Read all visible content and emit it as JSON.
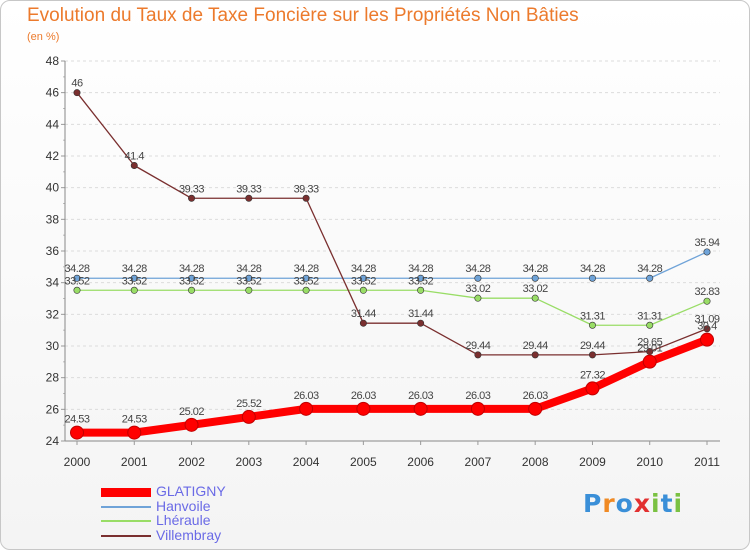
{
  "chart_data": {
    "type": "line",
    "title": "Evolution du Taux de Taxe Foncière sur les Propriétés Non Bâties",
    "ylabel": "(en %)",
    "xlabel": "",
    "categories": [
      "2000",
      "2001",
      "2002",
      "2003",
      "2004",
      "2005",
      "2006",
      "2007",
      "2008",
      "2009",
      "2010",
      "2011"
    ],
    "ylim": [
      24,
      48
    ],
    "yticks": [
      24,
      26,
      28,
      30,
      32,
      34,
      36,
      38,
      40,
      42,
      44,
      46,
      48
    ],
    "grid": "horizontal-dashed",
    "legend_position": "bottom-left",
    "series": [
      {
        "name": "GLATIGNY",
        "color": "#ff0000",
        "values": [
          24.53,
          24.53,
          25.02,
          25.52,
          26.03,
          26.03,
          26.03,
          26.03,
          26.03,
          27.32,
          29.01,
          30.4
        ],
        "labels": [
          "24.53",
          "24.53",
          "25.02",
          "25.52",
          "26.03",
          "26.03",
          "26.03",
          "26.03",
          "26.03",
          "27.32",
          "29.01",
          "30.4"
        ]
      },
      {
        "name": "Hanvoile",
        "color": "#6fa3d8",
        "values": [
          34.28,
          34.28,
          34.28,
          34.28,
          34.28,
          34.28,
          34.28,
          34.28,
          34.28,
          34.28,
          34.28,
          35.94
        ],
        "labels": [
          "34.28",
          "34.28",
          "34.28",
          "34.28",
          "34.28",
          "34.28",
          "34.28",
          "34.28",
          "34.28",
          "34.28",
          "34.28",
          "35.94"
        ]
      },
      {
        "name": "Lhéraule",
        "color": "#99dd66",
        "values": [
          33.52,
          33.52,
          33.52,
          33.52,
          33.52,
          33.52,
          33.52,
          33.02,
          33.02,
          31.31,
          31.31,
          32.83
        ],
        "labels": [
          "33.52",
          "33.52",
          "33.52",
          "33.52",
          "33.52",
          "33.52",
          "33.52",
          "33.02",
          "33.02",
          "31.31",
          "31.31",
          "32.83"
        ]
      },
      {
        "name": "Villembray",
        "color": "#7a2f2f",
        "values": [
          46,
          41.4,
          39.33,
          39.33,
          39.33,
          31.44,
          31.44,
          29.44,
          29.44,
          29.44,
          29.65,
          31.09
        ],
        "labels": [
          "46",
          "41.4",
          "39.33",
          "39.33",
          "39.33",
          "31.44",
          "31.44",
          "29.44",
          "29.44",
          "29.44",
          "29.65",
          "31.09"
        ]
      }
    ]
  },
  "branding": {
    "logo_text": "Proxiti",
    "logo_colors": [
      "#3a8fd8",
      "#f08a24",
      "#3a8fd8",
      "#e23030",
      "#7ac142",
      "#3a8fd8",
      "#7ac142"
    ]
  }
}
